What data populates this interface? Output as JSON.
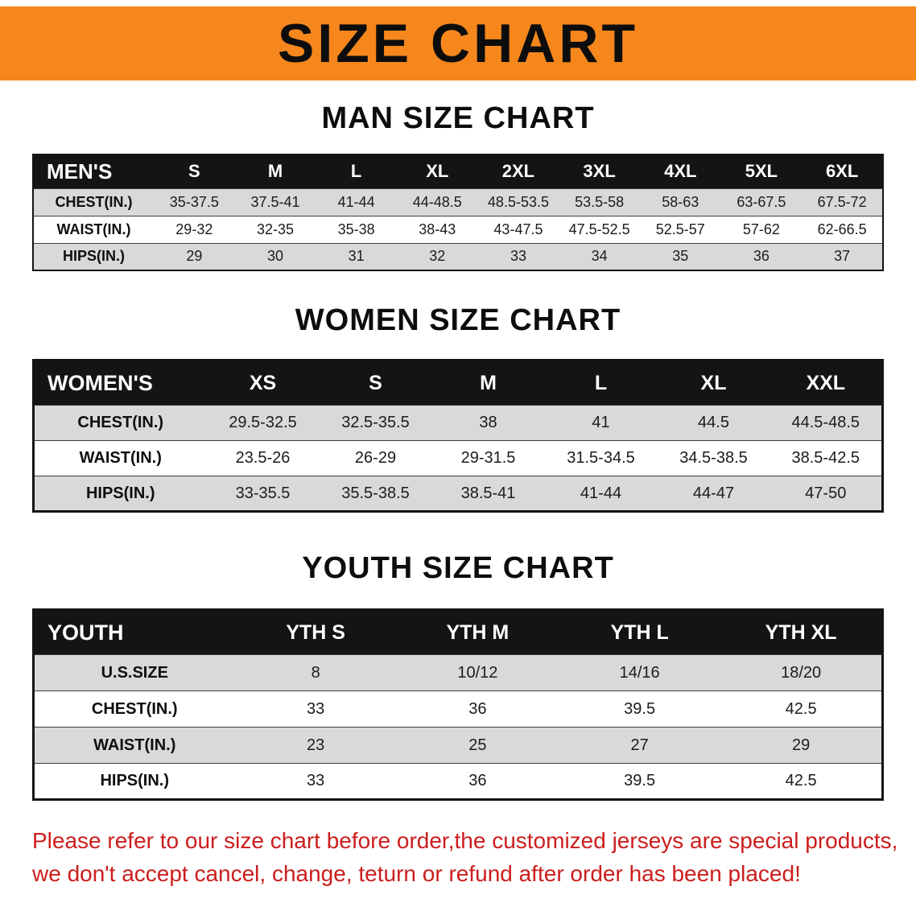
{
  "banner": {
    "title": "SIZE CHART"
  },
  "colors": {
    "banner_bg": "#f6871d",
    "table_header_bg": "#141414",
    "row_alt_bg": "#d9d9d9",
    "disclaimer_text": "#cc1d1d"
  },
  "men": {
    "heading": "MAN SIZE CHART",
    "header": [
      "MEN'S",
      "S",
      "M",
      "L",
      "XL",
      "2XL",
      "3XL",
      "4XL",
      "5XL",
      "6XL"
    ],
    "rows": [
      [
        "CHEST(IN.)",
        "35-37.5",
        "37.5-41",
        "41-44",
        "44-48.5",
        "48.5-53.5",
        "53.5-58",
        "58-63",
        "63-67.5",
        "67.5-72"
      ],
      [
        "WAIST(IN.)",
        "29-32",
        "32-35",
        "35-38",
        "38-43",
        "43-47.5",
        "47.5-52.5",
        "52.5-57",
        "57-62",
        "62-66.5"
      ],
      [
        "HIPS(IN.)",
        "29",
        "30",
        "31",
        "32",
        "33",
        "34",
        "35",
        "36",
        "37"
      ]
    ]
  },
  "women": {
    "heading": "WOMEN SIZE CHART",
    "header": [
      "WOMEN'S",
      "XS",
      "S",
      "M",
      "L",
      "XL",
      "XXL"
    ],
    "rows": [
      [
        "CHEST(IN.)",
        "29.5-32.5",
        "32.5-35.5",
        "38",
        "41",
        "44.5",
        "44.5-48.5"
      ],
      [
        "WAIST(IN.)",
        "23.5-26",
        "26-29",
        "29-31.5",
        "31.5-34.5",
        "34.5-38.5",
        "38.5-42.5"
      ],
      [
        "HIPS(IN.)",
        "33-35.5",
        "35.5-38.5",
        "38.5-41",
        "41-44",
        "44-47",
        "47-50"
      ]
    ]
  },
  "youth": {
    "heading": "YOUTH SIZE CHART",
    "header": [
      "YOUTH",
      "YTH S",
      "YTH M",
      "YTH L",
      "YTH XL"
    ],
    "rows": [
      [
        "U.S.SIZE",
        "8",
        "10/12",
        "14/16",
        "18/20"
      ],
      [
        "CHEST(IN.)",
        "33",
        "36",
        "39.5",
        "42.5"
      ],
      [
        "WAIST(IN.)",
        "23",
        "25",
        "27",
        "29"
      ],
      [
        "HIPS(IN.)",
        "33",
        "36",
        "39.5",
        "42.5"
      ]
    ]
  },
  "disclaimer": {
    "line1": "Please refer to our size chart before order,the customized jerseys are special products,",
    "line2": "we don't accept cancel, change, teturn or refund after order has been placed!"
  }
}
